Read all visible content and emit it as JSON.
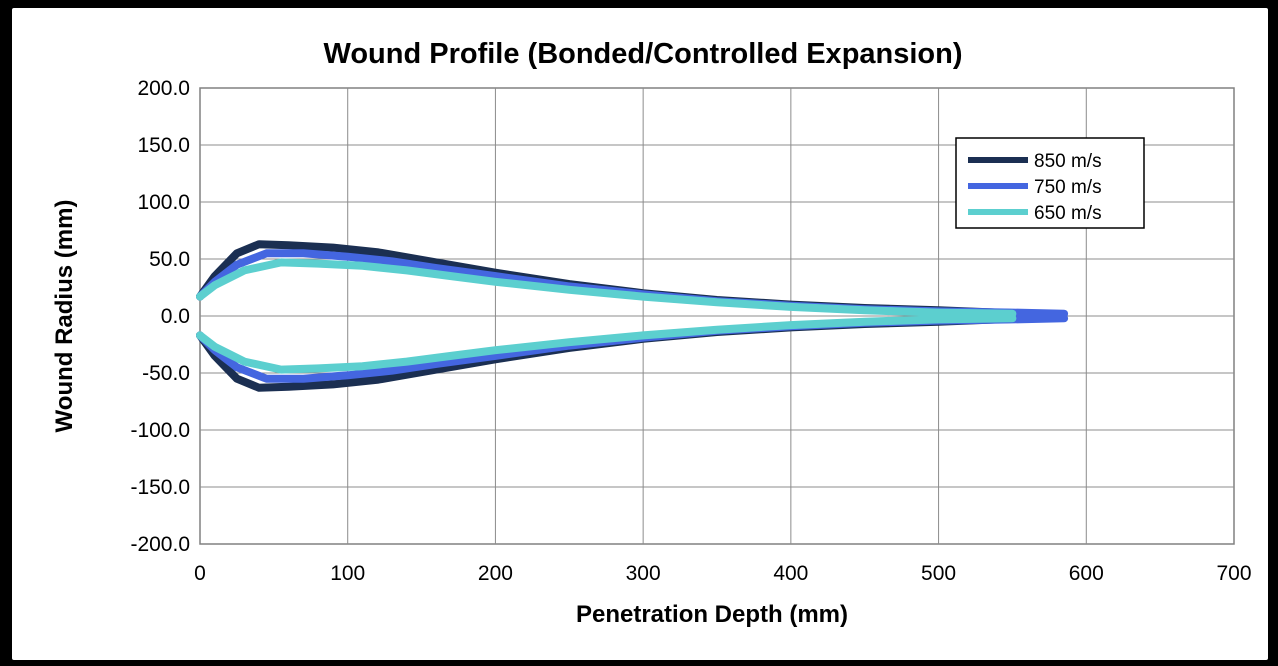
{
  "chart_data": {
    "type": "line",
    "title": "Wound Profile (Bonded/Controlled Expansion)",
    "xlabel": "Penetration Depth (mm)",
    "ylabel": "Wound Radius (mm)",
    "xlim": [
      0,
      700
    ],
    "ylim": [
      -200,
      200
    ],
    "x_ticks": [
      "0",
      "100",
      "200",
      "300",
      "400",
      "500",
      "600",
      "700"
    ],
    "y_ticks": [
      "200.0",
      "150.0",
      "100.0",
      "50.0",
      "0.0",
      "-50.0",
      "-100.0",
      "-150.0",
      "-200.0"
    ],
    "grid": true,
    "legend_position": "top-right",
    "series": [
      {
        "name": "850 m/s",
        "color": "#1b2f52",
        "x": [
          0,
          10,
          25,
          40,
          60,
          90,
          120,
          160,
          200,
          250,
          300,
          350,
          400,
          450,
          500,
          540,
          565
        ],
        "y": [
          17,
          35,
          55,
          63,
          62,
          60,
          56,
          47,
          38,
          28,
          20,
          14,
          10,
          7,
          5,
          3,
          2
        ]
      },
      {
        "name": "750 m/s",
        "color": "#4466e0",
        "x": [
          0,
          10,
          25,
          45,
          70,
          100,
          130,
          160,
          200,
          250,
          300,
          350,
          400,
          450,
          500,
          550,
          585
        ],
        "y": [
          17,
          30,
          45,
          55,
          55,
          52,
          48,
          42,
          35,
          26,
          19,
          13,
          9,
          6,
          4,
          3,
          2
        ]
      },
      {
        "name": "650 m/s",
        "color": "#5ccfcf",
        "x": [
          0,
          10,
          30,
          55,
          80,
          110,
          140,
          170,
          200,
          250,
          300,
          350,
          400,
          450,
          500,
          550
        ],
        "y": [
          17,
          27,
          40,
          47,
          46,
          44,
          40,
          35,
          30,
          23,
          17,
          12,
          8,
          5,
          3,
          2
        ]
      }
    ]
  }
}
